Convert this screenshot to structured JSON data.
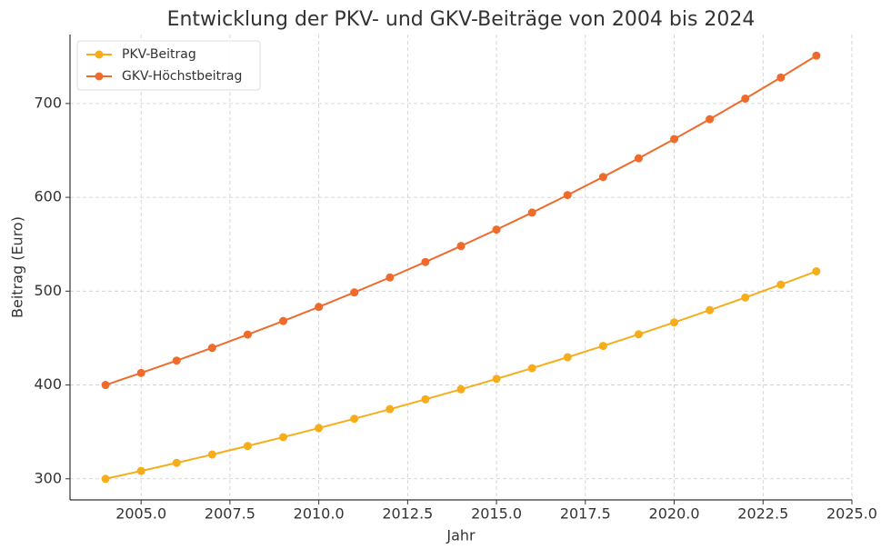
{
  "chart_data": {
    "type": "line",
    "title": "Entwicklung der PKV- und GKV-Beiträge von 2004 bis 2024",
    "x_label": "Jahr",
    "y_label": "Beitrag (Euro)",
    "x": [
      2004,
      2005,
      2006,
      2007,
      2008,
      2009,
      2010,
      2011,
      2012,
      2013,
      2014,
      2015,
      2016,
      2017,
      2018,
      2019,
      2020,
      2021,
      2022,
      2023,
      2024
    ],
    "series": [
      {
        "name": "PKV-Beitrag",
        "color": "#f7ad1a",
        "values": [
          300,
          308.4,
          317.0,
          325.9,
          335.0,
          344.4,
          354.1,
          364.0,
          374.2,
          384.7,
          395.4,
          406.5,
          417.9,
          429.6,
          441.6,
          454.0,
          466.7,
          479.8,
          493.2,
          507.0,
          521.2
        ]
      },
      {
        "name": "GKV-Höchstbeitrag",
        "color": "#ee6b2b",
        "values": [
          400,
          412.8,
          426.0,
          439.6,
          453.7,
          468.2,
          483.2,
          498.7,
          514.6,
          531.1,
          548.1,
          565.6,
          583.7,
          602.4,
          621.7,
          641.6,
          662.1,
          683.3,
          705.2,
          727.7,
          751.0
        ]
      }
    ],
    "xlim": [
      2003,
      2025
    ],
    "xticks": [
      {
        "value": 2005,
        "label": "2005.0"
      },
      {
        "value": 2007.5,
        "label": "2007.5"
      },
      {
        "value": 2010,
        "label": "2010.0"
      },
      {
        "value": 2012.5,
        "label": "2012.5"
      },
      {
        "value": 2015,
        "label": "2015.0"
      },
      {
        "value": 2017.5,
        "label": "2017.5"
      },
      {
        "value": 2020,
        "label": "2020.0"
      },
      {
        "value": 2022.5,
        "label": "2022.5"
      },
      {
        "value": 2025,
        "label": "2025.0"
      }
    ],
    "ylim": [
      277.5,
      773.5
    ],
    "yticks": [
      300,
      400,
      500,
      600,
      700
    ],
    "grid": true,
    "legend": "upper left"
  }
}
